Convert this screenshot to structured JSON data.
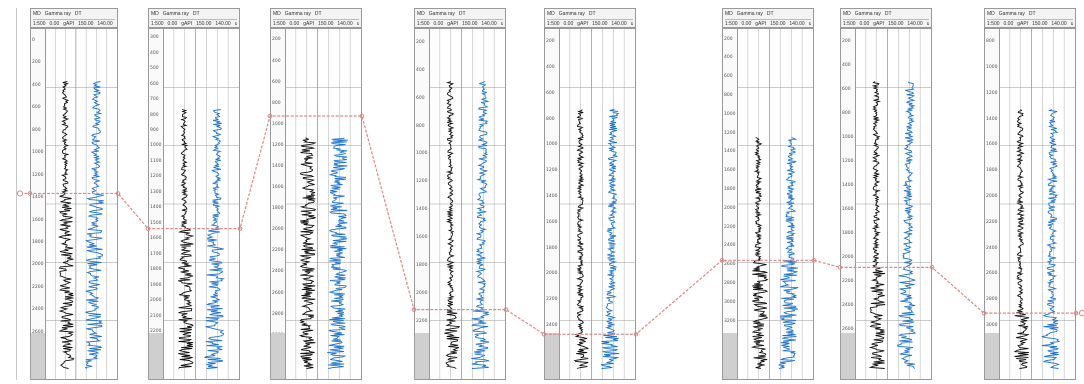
{
  "header": {
    "row1": [
      "MD",
      "Gamma ray",
      "DT"
    ],
    "row2": [
      "1:500",
      "0.00",
      "gAPI",
      "150.00",
      "140.00",
      "us/ft",
      "40.00"
    ]
  },
  "wells": [
    {
      "id": "well-1",
      "ticks": [
        "0",
        "200",
        "400",
        "600",
        "800",
        "1000",
        "1200",
        "1400",
        "1600",
        "1800",
        "2000",
        "2200",
        "2400",
        "2600",
        "2800"
      ],
      "top": 0.47
    },
    {
      "id": "well-2",
      "ticks": [
        "300",
        "400",
        "500",
        "600",
        "700",
        "800",
        "900",
        "1000",
        "1100",
        "1200",
        "1300",
        "1400",
        "1500",
        "1600",
        "1700",
        "1800",
        "1900",
        "2000",
        "2100",
        "2200",
        "2300",
        "2400"
      ],
      "top": 0.57
    },
    {
      "id": "well-3",
      "ticks": [
        "200",
        "400",
        "600",
        "800",
        "1000",
        "1200",
        "1400",
        "1600",
        "1800",
        "2000",
        "2200",
        "2400",
        "2600",
        "2800",
        "3000",
        "3200"
      ],
      "top": 0.25
    },
    {
      "id": "well-4",
      "ticks": [
        "200",
        "400",
        "600",
        "800",
        "1000",
        "1200",
        "1400",
        "1600",
        "1800",
        "2000",
        "2200",
        "2400"
      ],
      "top": 0.8
    },
    {
      "id": "well-5",
      "ticks": [
        "200",
        "400",
        "600",
        "800",
        "1000",
        "1200",
        "1400",
        "1600",
        "1800",
        "2000",
        "2200",
        "2400",
        "2600"
      ],
      "top": 0.87
    },
    {
      "id": "well-6",
      "ticks": [
        "200",
        "400",
        "600",
        "800",
        "1000",
        "1200",
        "1400",
        "1600",
        "1800",
        "2000",
        "2200",
        "2400",
        "2600",
        "2800",
        "3000",
        "3200",
        "3400",
        "3600"
      ],
      "top": 0.66
    },
    {
      "id": "well-7",
      "ticks": [
        "200",
        "400",
        "600",
        "800",
        "1000",
        "1200",
        "1400",
        "1600",
        "1800",
        "2000",
        "2200",
        "2400",
        "2600",
        "2800"
      ],
      "top": 0.68
    },
    {
      "id": "well-8",
      "ticks": [
        "800",
        "1000",
        "1200",
        "1400",
        "1600",
        "1800",
        "2000",
        "2200",
        "2400",
        "2600",
        "2800",
        "3000",
        "3200"
      ],
      "top": 0.81
    }
  ],
  "colors": {
    "gamma_ray": "#111111",
    "sonic_dt": "#1e74d0",
    "correlation": "#d98a8a",
    "grid": "#9a9a9a"
  }
}
